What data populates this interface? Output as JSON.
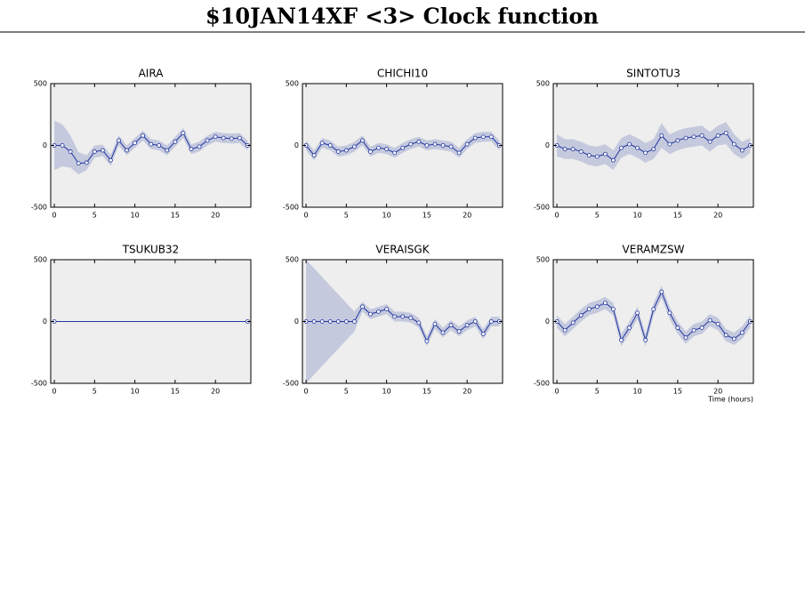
{
  "title": "$10JAN14XF <3>  Clock function",
  "chart_data": [
    {
      "type": "line",
      "title": "AIRA",
      "color": "#2035a0",
      "band_color": "#c5c9dd",
      "x": [
        0,
        1,
        2,
        3,
        4,
        5,
        6,
        7,
        8,
        9,
        10,
        11,
        12,
        13,
        14,
        15,
        16,
        17,
        18,
        19,
        20,
        21,
        22,
        23,
        24
      ],
      "values": [
        0,
        0,
        -50,
        -145,
        -140,
        -50,
        -40,
        -120,
        40,
        -40,
        20,
        80,
        10,
        0,
        -40,
        30,
        100,
        -30,
        -10,
        40,
        70,
        60,
        55,
        60,
        0
      ],
      "errors": [
        200,
        170,
        130,
        90,
        60,
        50,
        45,
        45,
        40,
        40,
        40,
        40,
        40,
        40,
        40,
        40,
        40,
        40,
        40,
        40,
        40,
        40,
        40,
        40,
        40
      ],
      "xlim": [
        -0.45,
        24.4
      ],
      "ylim": [
        -500,
        500
      ],
      "xticks": [
        0,
        5,
        10,
        15,
        20
      ],
      "yticks": [
        -500,
        0,
        500
      ]
    },
    {
      "type": "line",
      "title": "CHICHI10",
      "color": "#2035a0",
      "band_color": "#c5c9dd",
      "x": [
        0,
        1,
        2,
        3,
        4,
        5,
        6,
        7,
        8,
        9,
        10,
        11,
        12,
        13,
        14,
        15,
        16,
        17,
        18,
        19,
        20,
        21,
        22,
        23,
        24
      ],
      "values": [
        0,
        -80,
        20,
        0,
        -50,
        -40,
        -10,
        40,
        -50,
        -20,
        -30,
        -60,
        -20,
        10,
        30,
        0,
        10,
        0,
        -10,
        -60,
        10,
        60,
        70,
        70,
        0
      ],
      "errors": [
        40,
        40,
        40,
        40,
        40,
        40,
        40,
        40,
        40,
        40,
        40,
        40,
        40,
        40,
        40,
        40,
        40,
        40,
        40,
        40,
        40,
        40,
        40,
        40,
        40
      ],
      "xlim": [
        -0.45,
        24.4
      ],
      "ylim": [
        -500,
        500
      ],
      "xticks": [
        0,
        5,
        10,
        15,
        20
      ],
      "yticks": [
        -500,
        0,
        500
      ]
    },
    {
      "type": "line",
      "title": "SINTOTU3",
      "color": "#2035a0",
      "band_color": "#c5c9dd",
      "x": [
        0,
        1,
        2,
        3,
        4,
        5,
        6,
        7,
        8,
        9,
        10,
        11,
        12,
        13,
        14,
        15,
        16,
        17,
        18,
        19,
        20,
        21,
        22,
        23,
        24
      ],
      "values": [
        0,
        -30,
        -30,
        -50,
        -80,
        -90,
        -70,
        -120,
        -20,
        10,
        -20,
        -60,
        -30,
        80,
        10,
        40,
        60,
        70,
        80,
        30,
        80,
        100,
        10,
        -40,
        0
      ],
      "errors": [
        90,
        80,
        80,
        80,
        80,
        80,
        80,
        80,
        80,
        80,
        80,
        80,
        80,
        100,
        80,
        80,
        80,
        80,
        80,
        80,
        80,
        90,
        80,
        70,
        60
      ],
      "xlim": [
        -0.45,
        24.4
      ],
      "ylim": [
        -500,
        500
      ],
      "xticks": [
        0,
        5,
        10,
        15,
        20
      ],
      "yticks": [
        -500,
        0,
        500
      ]
    },
    {
      "type": "line",
      "title": "TSUKUB32",
      "color": "#2035a0",
      "band_color": "#c5c9dd",
      "x": [
        0,
        24
      ],
      "values": [
        0,
        0
      ],
      "errors": [
        0,
        0
      ],
      "xlim": [
        -0.45,
        24.4
      ],
      "ylim": [
        -500,
        500
      ],
      "xticks": [
        0,
        5,
        10,
        15,
        20
      ],
      "yticks": [
        -500,
        0,
        500
      ]
    },
    {
      "type": "line",
      "title": "VERAISGK",
      "color": "#2035a0",
      "band_color": "#c5c9dd",
      "x": [
        0,
        1,
        2,
        3,
        4,
        5,
        6,
        7,
        8,
        9,
        10,
        11,
        12,
        13,
        14,
        15,
        16,
        17,
        18,
        19,
        20,
        21,
        22,
        23,
        24
      ],
      "values": [
        0,
        0,
        0,
        0,
        0,
        0,
        0,
        120,
        60,
        80,
        100,
        40,
        40,
        30,
        -10,
        -160,
        -20,
        -90,
        -30,
        -80,
        -30,
        0,
        -100,
        0,
        0
      ],
      "errors": [
        500,
        430,
        360,
        290,
        220,
        150,
        80,
        40,
        40,
        40,
        40,
        40,
        40,
        40,
        40,
        40,
        40,
        40,
        40,
        40,
        40,
        40,
        40,
        40,
        40
      ],
      "xlim": [
        -0.45,
        24.4
      ],
      "ylim": [
        -500,
        500
      ],
      "xticks": [
        0,
        5,
        10,
        15,
        20
      ],
      "yticks": [
        -500,
        0,
        500
      ]
    },
    {
      "type": "line",
      "title": "VERAMZSW",
      "color": "#2035a0",
      "band_color": "#c5c9dd",
      "x_label": "Time (hours)",
      "x": [
        0,
        1,
        2,
        3,
        4,
        5,
        6,
        7,
        8,
        9,
        10,
        11,
        12,
        13,
        14,
        15,
        16,
        17,
        18,
        19,
        20,
        21,
        22,
        23,
        24
      ],
      "values": [
        0,
        -70,
        -10,
        50,
        100,
        120,
        150,
        100,
        -150,
        -50,
        70,
        -150,
        100,
        240,
        70,
        -50,
        -130,
        -70,
        -50,
        10,
        -20,
        -110,
        -140,
        -90,
        0
      ],
      "errors": [
        50,
        50,
        50,
        50,
        50,
        50,
        50,
        50,
        50,
        50,
        50,
        50,
        50,
        50,
        50,
        50,
        50,
        50,
        50,
        50,
        50,
        50,
        50,
        50,
        50
      ],
      "xlim": [
        -0.45,
        24.4
      ],
      "ylim": [
        -500,
        500
      ],
      "xticks": [
        0,
        5,
        10,
        15,
        20
      ],
      "yticks": [
        -500,
        0,
        500
      ]
    }
  ]
}
